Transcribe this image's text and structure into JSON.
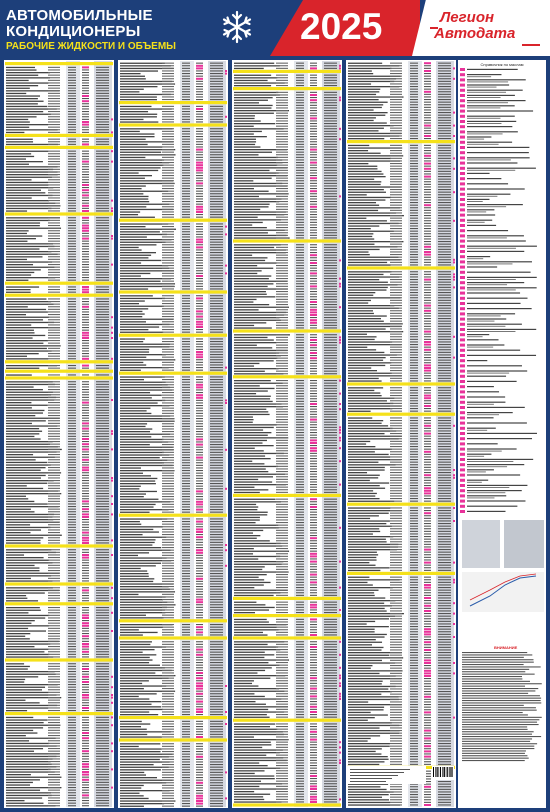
{
  "header": {
    "title_line1": "АВТОМОБИЛЬНЫЕ",
    "title_line2": "КОНДИЦИОНЕРЫ",
    "subtitle": "РАБОЧИЕ ЖИДКОСТИ И ОБЪЕМЫ",
    "year": "2025",
    "logo_line1": "Легион",
    "logo_line2": "Автодата"
  },
  "colors": {
    "navy": "#1d3f7a",
    "red": "#d9242b",
    "yellow": "#f5e11a",
    "magenta": "#e8329a",
    "white": "#ffffff"
  },
  "icons": {
    "snowflake": "snowflake-icon",
    "barcode": "barcode-icon"
  },
  "side_panel": {
    "title": "Справочник по маслам",
    "warning_title": "ВНИМАНИЕ"
  }
}
